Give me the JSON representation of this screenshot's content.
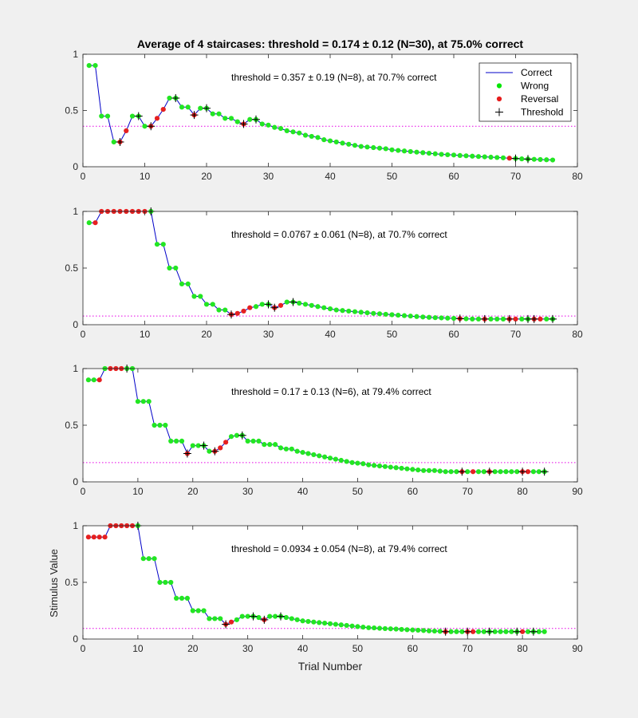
{
  "figure": {
    "title": "Average of 4 staircases: threshold = 0.174 ± 0.12 (N=30), at 75.0% correct",
    "ylabel": "Stimulus Value",
    "xlabel": "Trial Number"
  },
  "legend": {
    "placement": "top-right of first panel",
    "entries": [
      {
        "label": "Correct",
        "marker": "line",
        "color": "#0000c8"
      },
      {
        "label": "Wrong",
        "marker": "dot",
        "color": "#00e600"
      },
      {
        "label": "Reversal",
        "marker": "dot",
        "color": "#e61c1c"
      },
      {
        "label": "Threshold",
        "marker": "plus",
        "color": "#000000"
      }
    ]
  },
  "colors": {
    "line": "#0000c8",
    "trial_dot": "#22e622",
    "reversal_dot": "#e62020",
    "threshold_marker": "#000000",
    "threshold_line": "#e600e6",
    "axes_background": "#ffffff",
    "figure_background": "#f0f0f0"
  },
  "chart_data": [
    {
      "type": "line",
      "annotation": "threshold = 0.357 ± 0.19 (N=8), at 70.7% correct",
      "xlim": [
        0,
        80
      ],
      "ylim": [
        0,
        1
      ],
      "xticks": [
        0,
        10,
        20,
        30,
        40,
        50,
        60,
        70,
        80
      ],
      "yticks": [
        0,
        0.5,
        1
      ],
      "ytick_labels": [
        "0",
        "0.5",
        "1"
      ],
      "threshold_level": 0.36,
      "y": [
        0.9,
        0.9,
        0.45,
        0.45,
        0.22,
        0.22,
        0.32,
        0.45,
        0.45,
        0.36,
        0.36,
        0.43,
        0.51,
        0.61,
        0.61,
        0.53,
        0.53,
        0.46,
        0.52,
        0.52,
        0.47,
        0.47,
        0.43,
        0.43,
        0.4,
        0.38,
        0.42,
        0.42,
        0.38,
        0.37,
        0.35,
        0.34,
        0.32,
        0.31,
        0.3,
        0.28,
        0.27,
        0.26,
        0.24,
        0.23,
        0.22,
        0.21,
        0.2,
        0.19,
        0.18,
        0.175,
        0.17,
        0.165,
        0.16,
        0.15,
        0.145,
        0.14,
        0.135,
        0.13,
        0.125,
        0.12,
        0.115,
        0.11,
        0.107,
        0.104,
        0.1,
        0.097,
        0.094,
        0.091,
        0.088,
        0.085,
        0.082,
        0.079,
        0.076,
        0.073,
        0.07,
        0.068,
        0.066,
        0.064,
        0.062,
        0.06
      ],
      "reversals": [
        6,
        7,
        11,
        12,
        13,
        18,
        26,
        69
      ],
      "threshold_trials": [
        6,
        9,
        11,
        15,
        18,
        20,
        26,
        28,
        70,
        72
      ]
    },
    {
      "type": "line",
      "annotation": "threshold = 0.0767 ± 0.061 (N=8), at 70.7% correct",
      "xlim": [
        0,
        80
      ],
      "ylim": [
        0,
        1
      ],
      "xticks": [
        0,
        10,
        20,
        30,
        40,
        50,
        60,
        70,
        80
      ],
      "yticks": [
        0,
        0.5,
        1
      ],
      "ytick_labels": [
        "0",
        "0.5",
        "1"
      ],
      "threshold_level": 0.077,
      "y": [
        0.9,
        0.9,
        1,
        1,
        1,
        1,
        1,
        1,
        1,
        1,
        1,
        0.71,
        0.71,
        0.5,
        0.5,
        0.36,
        0.36,
        0.25,
        0.25,
        0.18,
        0.18,
        0.13,
        0.13,
        0.09,
        0.1,
        0.12,
        0.15,
        0.16,
        0.18,
        0.18,
        0.15,
        0.17,
        0.2,
        0.2,
        0.19,
        0.18,
        0.17,
        0.16,
        0.15,
        0.14,
        0.13,
        0.125,
        0.12,
        0.115,
        0.11,
        0.105,
        0.1,
        0.096,
        0.092,
        0.088,
        0.084,
        0.08,
        0.076,
        0.072,
        0.068,
        0.065,
        0.062,
        0.06,
        0.058,
        0.056,
        0.054,
        0.052,
        0.05,
        0.05,
        0.05,
        0.05,
        0.05,
        0.05,
        0.05,
        0.05,
        0.05,
        0.05,
        0.05,
        0.05,
        0.05,
        0.05
      ],
      "reversals": [
        2,
        3,
        4,
        5,
        6,
        7,
        8,
        9,
        10,
        24,
        25,
        26,
        27,
        31,
        32,
        61,
        65,
        69,
        70,
        73,
        74
      ],
      "threshold_trials": [
        11,
        24,
        30,
        31,
        34,
        61,
        65,
        69,
        72,
        73,
        76
      ]
    },
    {
      "type": "line",
      "annotation": "threshold = 0.17 ± 0.13 (N=6), at 79.4% correct",
      "xlim": [
        0,
        90
      ],
      "ylim": [
        0,
        1
      ],
      "xticks": [
        0,
        10,
        20,
        30,
        40,
        50,
        60,
        70,
        80,
        90
      ],
      "yticks": [
        0,
        0.5,
        1
      ],
      "ytick_labels": [
        "0",
        "0.5",
        "1"
      ],
      "threshold_level": 0.17,
      "y": [
        0.9,
        0.9,
        0.9,
        1,
        1,
        1,
        1,
        1,
        1,
        0.71,
        0.71,
        0.71,
        0.5,
        0.5,
        0.5,
        0.36,
        0.36,
        0.36,
        0.25,
        0.32,
        0.32,
        0.32,
        0.27,
        0.27,
        0.3,
        0.35,
        0.4,
        0.41,
        0.41,
        0.36,
        0.36,
        0.36,
        0.33,
        0.33,
        0.33,
        0.3,
        0.29,
        0.29,
        0.27,
        0.26,
        0.25,
        0.24,
        0.23,
        0.22,
        0.21,
        0.2,
        0.19,
        0.18,
        0.17,
        0.165,
        0.16,
        0.15,
        0.145,
        0.14,
        0.135,
        0.13,
        0.125,
        0.12,
        0.115,
        0.11,
        0.105,
        0.1,
        0.1,
        0.1,
        0.095,
        0.09,
        0.09,
        0.09,
        0.09,
        0.09,
        0.09,
        0.09,
        0.09,
        0.09,
        0.09,
        0.09,
        0.09,
        0.09,
        0.09,
        0.09,
        0.09,
        0.09,
        0.09,
        0.09
      ],
      "reversals": [
        3,
        5,
        6,
        7,
        19,
        24,
        25,
        26,
        69,
        71,
        74,
        80,
        81
      ],
      "threshold_trials": [
        8,
        19,
        22,
        24,
        29,
        69,
        74,
        80,
        84
      ]
    },
    {
      "type": "line",
      "annotation": "threshold = 0.0934 ± 0.054 (N=8), at 79.4% correct",
      "xlim": [
        0,
        90
      ],
      "ylim": [
        0,
        1
      ],
      "xticks": [
        0,
        10,
        20,
        30,
        40,
        50,
        60,
        70,
        80,
        90
      ],
      "yticks": [
        0,
        0.5,
        1
      ],
      "ytick_labels": [
        "0",
        "0.5",
        "1"
      ],
      "threshold_level": 0.093,
      "y": [
        0.9,
        0.9,
        0.9,
        0.9,
        1,
        1,
        1,
        1,
        1,
        1,
        0.71,
        0.71,
        0.71,
        0.5,
        0.5,
        0.5,
        0.36,
        0.36,
        0.36,
        0.25,
        0.25,
        0.25,
        0.18,
        0.18,
        0.18,
        0.13,
        0.15,
        0.17,
        0.2,
        0.2,
        0.2,
        0.19,
        0.17,
        0.2,
        0.2,
        0.2,
        0.19,
        0.18,
        0.17,
        0.16,
        0.155,
        0.15,
        0.145,
        0.14,
        0.135,
        0.13,
        0.125,
        0.12,
        0.115,
        0.11,
        0.105,
        0.1,
        0.098,
        0.095,
        0.092,
        0.09,
        0.088,
        0.085,
        0.082,
        0.08,
        0.078,
        0.075,
        0.072,
        0.07,
        0.068,
        0.065,
        0.065,
        0.065,
        0.065,
        0.065,
        0.065,
        0.065,
        0.065,
        0.065,
        0.065,
        0.065,
        0.065,
        0.065,
        0.065,
        0.065,
        0.065,
        0.065,
        0.065,
        0.065
      ],
      "reversals": [
        1,
        2,
        3,
        4,
        5,
        6,
        7,
        8,
        9,
        26,
        27,
        33,
        66,
        70,
        71,
        80
      ],
      "threshold_trials": [
        10,
        26,
        31,
        33,
        36,
        66,
        70,
        74,
        79,
        82
      ]
    }
  ]
}
